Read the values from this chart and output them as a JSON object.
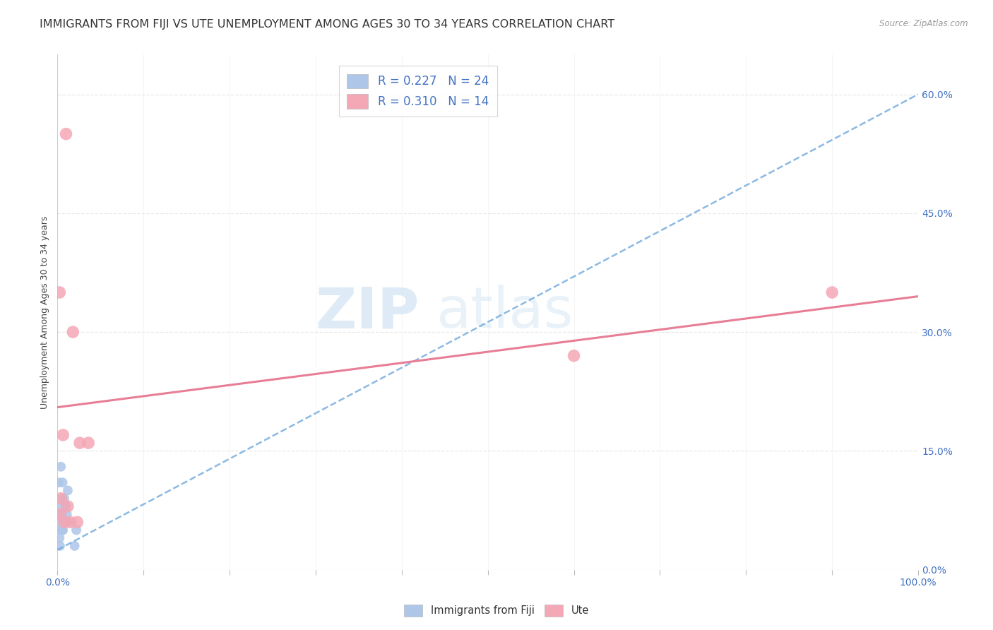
{
  "title": "IMMIGRANTS FROM FIJI VS UTE UNEMPLOYMENT AMONG AGES 30 TO 34 YEARS CORRELATION CHART",
  "source": "Source: ZipAtlas.com",
  "ylabel": "Unemployment Among Ages 30 to 34 years",
  "ylabel_vals": [
    0,
    15,
    30,
    45,
    60
  ],
  "ylim": [
    0,
    65
  ],
  "xlim": [
    0,
    100
  ],
  "fiji_R": 0.227,
  "fiji_N": 24,
  "ute_R": 0.31,
  "ute_N": 14,
  "fiji_color": "#aec6e8",
  "ute_color": "#f4a7b5",
  "fiji_line_color": "#6fa8dc",
  "ute_line_color": "#e87d96",
  "fiji_scatter_x": [
    0.15,
    0.4,
    0.6,
    0.8,
    1.0,
    1.2,
    0.25,
    0.55,
    0.9,
    0.35,
    0.7,
    1.05,
    0.5,
    0.15,
    0.65,
    1.1,
    0.4,
    0.8,
    0.25,
    0.55,
    1.25,
    0.3,
    2.0,
    2.2
  ],
  "fiji_scatter_y": [
    11,
    13,
    11,
    9,
    8,
    10,
    8,
    7,
    8,
    7,
    6,
    6,
    9,
    6,
    5,
    7,
    5,
    6,
    4,
    5,
    6,
    3,
    3,
    5
  ],
  "ute_scatter_x": [
    0.25,
    1.0,
    0.65,
    1.8,
    2.3,
    3.6,
    60,
    90,
    1.2,
    0.4,
    1.5,
    2.6,
    0.8,
    0.3
  ],
  "ute_scatter_y": [
    35,
    55,
    17,
    30,
    6,
    16,
    27,
    35,
    8,
    9,
    6,
    16,
    6,
    7
  ],
  "fiji_trend_x": [
    0,
    100
  ],
  "fiji_trend_y": [
    2.5,
    60.0
  ],
  "ute_trend_x": [
    0,
    100
  ],
  "ute_trend_y": [
    20.5,
    34.5
  ],
  "watermark_text": "ZIP",
  "watermark_text2": "atlas",
  "background_color": "#ffffff",
  "grid_color": "#e8e8e8",
  "title_fontsize": 11.5,
  "axis_label_fontsize": 9,
  "tick_fontsize": 10,
  "legend_fontsize": 12,
  "marker_size_fiji": 100,
  "marker_size_ute": 160
}
